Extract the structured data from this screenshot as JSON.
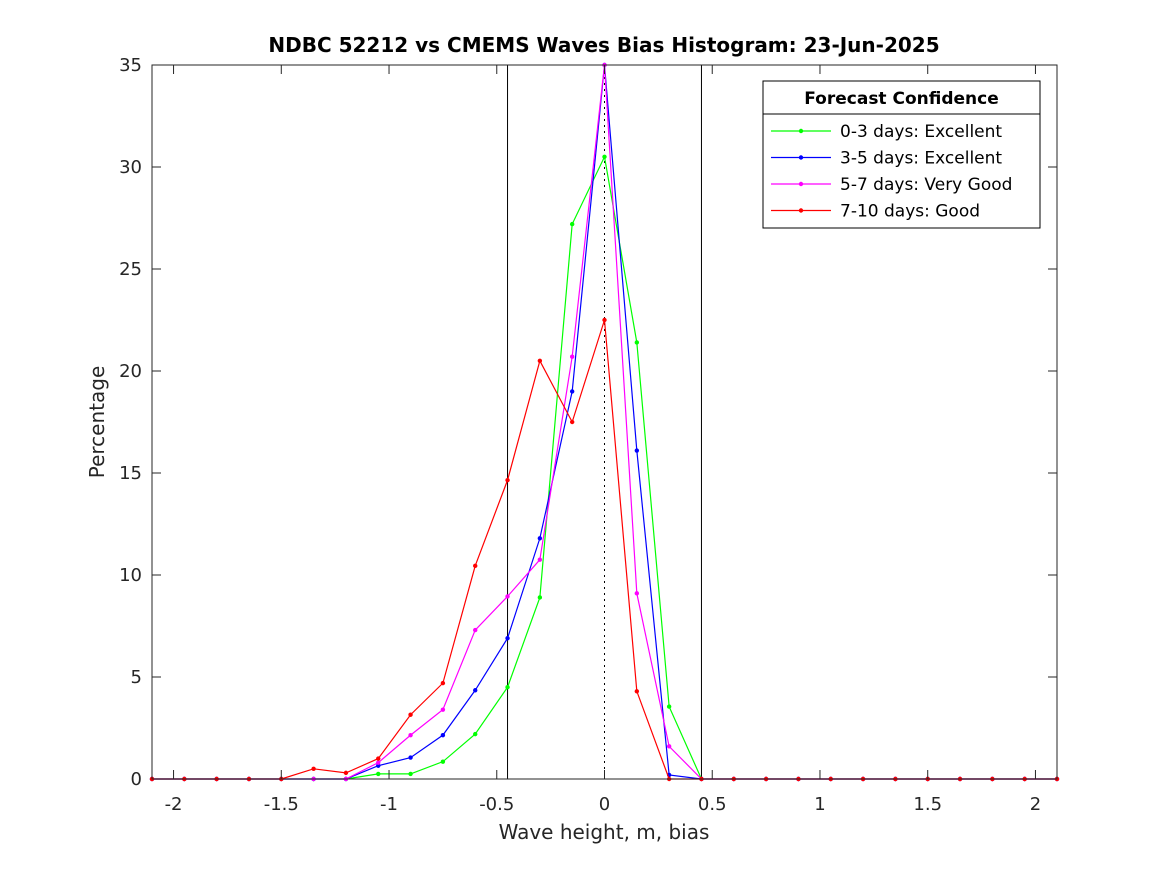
{
  "chart_data": {
    "type": "line",
    "title": "NDBC 52212 vs CMEMS Waves Bias Histogram: 23-Jun-2025",
    "xlabel": "Wave height, m, bias",
    "ylabel": "Percentage",
    "xlim": [
      -2.1,
      2.1
    ],
    "ylim": [
      0,
      35
    ],
    "xticks": [
      -2,
      -1.5,
      -1,
      -0.5,
      0,
      0.5,
      1,
      1.5,
      2
    ],
    "xtick_labels": [
      "-2",
      "-1.5",
      "-1",
      "-0.5",
      "0",
      "0.5",
      "1",
      "1.5",
      "2"
    ],
    "yticks": [
      0,
      5,
      10,
      15,
      20,
      25,
      30,
      35
    ],
    "ytick_labels": [
      "0",
      "5",
      "10",
      "15",
      "20",
      "25",
      "30",
      "35"
    ],
    "vertical_lines": [
      -0.45,
      0.45
    ],
    "zero_line": 0,
    "legend": {
      "title": "Forecast Confidence",
      "position": "top-right"
    },
    "x": [
      -2.1,
      -1.95,
      -1.8,
      -1.65,
      -1.5,
      -1.35,
      -1.2,
      -1.05,
      -0.9,
      -0.75,
      -0.6,
      -0.45,
      -0.3,
      -0.15,
      0,
      0.15,
      0.3,
      0.45,
      0.6,
      0.75,
      0.9,
      1.05,
      1.2,
      1.35,
      1.5,
      1.65,
      1.8,
      1.95,
      2.1
    ],
    "series": [
      {
        "name": "0-3 days: Excellent",
        "color": "#00ff00",
        "values": [
          0,
          0,
          0,
          0,
          0,
          0,
          0,
          0.25,
          0.25,
          0.85,
          2.2,
          4.5,
          8.9,
          27.2,
          30.5,
          21.4,
          3.55,
          0,
          0,
          0,
          0,
          0,
          0,
          0,
          0,
          0,
          0,
          0,
          0
        ]
      },
      {
        "name": "3-5 days: Excellent",
        "color": "#0000ff",
        "values": [
          0,
          0,
          0,
          0,
          0,
          0,
          0,
          0.65,
          1.05,
          2.15,
          4.35,
          6.9,
          11.8,
          19.0,
          35.0,
          16.1,
          0.2,
          0,
          0,
          0,
          0,
          0,
          0,
          0,
          0,
          0,
          0,
          0,
          0
        ]
      },
      {
        "name": "5-7 days: Very Good",
        "color": "#ff00ff",
        "values": [
          0,
          0,
          0,
          0,
          0,
          0,
          0,
          0.8,
          2.15,
          3.4,
          7.3,
          8.95,
          10.75,
          20.7,
          35.0,
          9.1,
          1.6,
          0,
          0,
          0,
          0,
          0,
          0,
          0,
          0,
          0,
          0,
          0,
          0
        ]
      },
      {
        "name": "7-10 days: Good",
        "color": "#ff0000",
        "values": [
          0,
          0,
          0,
          0,
          0,
          0.5,
          0.3,
          1.0,
          3.15,
          4.7,
          10.45,
          14.65,
          20.5,
          17.5,
          22.5,
          4.3,
          0,
          0,
          0,
          0,
          0,
          0,
          0,
          0,
          0,
          0,
          0,
          0,
          0
        ]
      }
    ]
  }
}
